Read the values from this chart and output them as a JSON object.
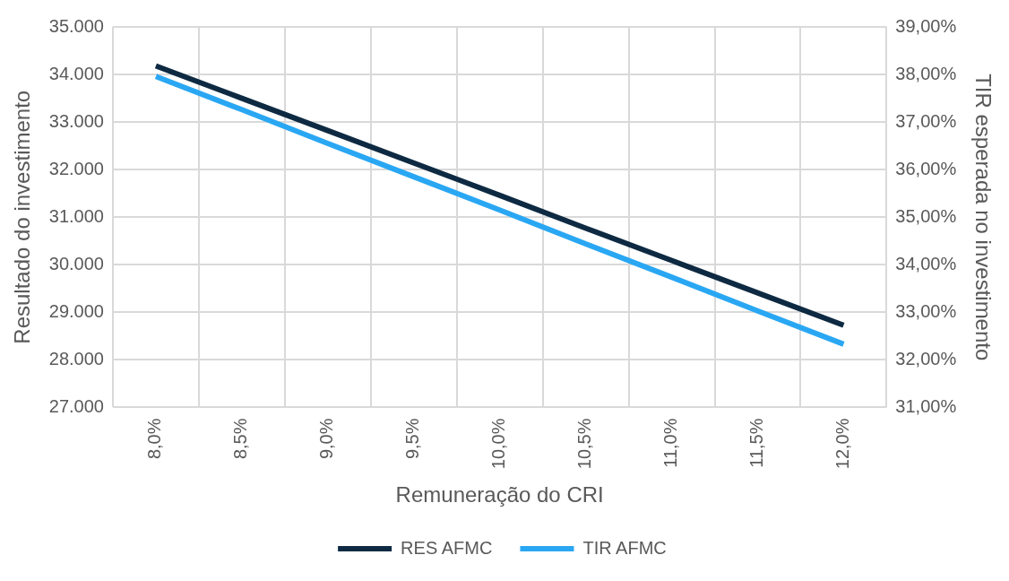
{
  "chart_data": {
    "type": "line",
    "xlabel": "Remuneração do CRI",
    "ylabel": "Resultado do investimento",
    "y2label": "TIR esperada no investimento",
    "categories": [
      "8,0%",
      "8,5%",
      "9,0%",
      "9,5%",
      "10,0%",
      "10,5%",
      "11,0%",
      "11,5%",
      "12,0%"
    ],
    "series": [
      {
        "name": "RES AFMC",
        "color": "#0e2a42",
        "values": [
          34180,
          33500,
          32820,
          32140,
          31460,
          30770,
          30090,
          29410,
          28730
        ]
      },
      {
        "name": "TIR AFMC",
        "color": "#2aa7f3",
        "axis": "y2",
        "values": [
          37.96,
          37.26,
          36.55,
          35.85,
          35.15,
          34.44,
          33.74,
          33.03,
          32.33
        ]
      }
    ],
    "ylim": [
      27000,
      35000
    ],
    "yticks": [
      {
        "value": 27000,
        "label": "27.000"
      },
      {
        "value": 28000,
        "label": "28.000"
      },
      {
        "value": 29000,
        "label": "29.000"
      },
      {
        "value": 30000,
        "label": "30.000"
      },
      {
        "value": 31000,
        "label": "31.000"
      },
      {
        "value": 32000,
        "label": "32.000"
      },
      {
        "value": 33000,
        "label": "33.000"
      },
      {
        "value": 34000,
        "label": "34.000"
      },
      {
        "value": 35000,
        "label": "35.000"
      }
    ],
    "y2lim": [
      31,
      39
    ],
    "y2ticks": [
      {
        "value": 31,
        "label": "31,00%"
      },
      {
        "value": 32,
        "label": "32,00%"
      },
      {
        "value": 33,
        "label": "33,00%"
      },
      {
        "value": 34,
        "label": "34,00%"
      },
      {
        "value": 35,
        "label": "35,00%"
      },
      {
        "value": 36,
        "label": "36,00%"
      },
      {
        "value": 37,
        "label": "37,00%"
      },
      {
        "value": 38,
        "label": "38,00%"
      },
      {
        "value": 39,
        "label": "39,00%"
      }
    ],
    "grid": true,
    "legend": "bottom",
    "marker": "none",
    "line_style": "solid"
  }
}
